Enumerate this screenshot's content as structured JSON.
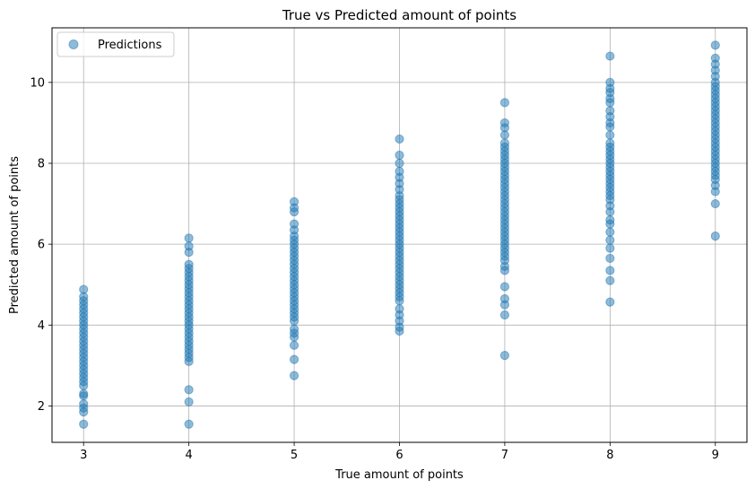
{
  "chart_data": {
    "type": "scatter",
    "title": "True vs Predicted amount of points",
    "xlabel": "True amount of points",
    "ylabel": "Predicted amount of points",
    "xlim": [
      2.7,
      9.3
    ],
    "ylim": [
      1.1,
      11.35
    ],
    "xticks": [
      3,
      4,
      5,
      6,
      7,
      8,
      9
    ],
    "yticks": [
      2,
      4,
      6,
      8,
      10
    ],
    "grid": true,
    "legend": {
      "entries": [
        "Predictions"
      ],
      "position": "top-left"
    },
    "color": "#1f77b4",
    "series": [
      {
        "name": "Predictions",
        "points": [
          {
            "x": 3,
            "y": 1.55
          },
          {
            "x": 3,
            "y": 1.85
          },
          {
            "x": 3,
            "y": 1.95
          },
          {
            "x": 3,
            "y": 2.05
          },
          {
            "x": 3,
            "y": 2.25
          },
          {
            "x": 3,
            "y": 2.3
          },
          {
            "x": 3,
            "y": 2.5
          },
          {
            "x": 3,
            "y": 2.6
          },
          {
            "x": 3,
            "y": 2.7
          },
          {
            "x": 3,
            "y": 2.8
          },
          {
            "x": 3,
            "y": 2.9
          },
          {
            "x": 3,
            "y": 3.0
          },
          {
            "x": 3,
            "y": 3.1
          },
          {
            "x": 3,
            "y": 3.2
          },
          {
            "x": 3,
            "y": 3.3
          },
          {
            "x": 3,
            "y": 3.4
          },
          {
            "x": 3,
            "y": 3.5
          },
          {
            "x": 3,
            "y": 3.6
          },
          {
            "x": 3,
            "y": 3.7
          },
          {
            "x": 3,
            "y": 3.8
          },
          {
            "x": 3,
            "y": 3.9
          },
          {
            "x": 3,
            "y": 4.0
          },
          {
            "x": 3,
            "y": 4.1
          },
          {
            "x": 3,
            "y": 4.2
          },
          {
            "x": 3,
            "y": 4.3
          },
          {
            "x": 3,
            "y": 4.4
          },
          {
            "x": 3,
            "y": 4.5
          },
          {
            "x": 3,
            "y": 4.6
          },
          {
            "x": 3,
            "y": 4.7
          },
          {
            "x": 3,
            "y": 4.88
          },
          {
            "x": 4,
            "y": 1.55
          },
          {
            "x": 4,
            "y": 2.1
          },
          {
            "x": 4,
            "y": 2.4
          },
          {
            "x": 4,
            "y": 3.1
          },
          {
            "x": 4,
            "y": 3.2
          },
          {
            "x": 4,
            "y": 3.3
          },
          {
            "x": 4,
            "y": 3.4
          },
          {
            "x": 4,
            "y": 3.5
          },
          {
            "x": 4,
            "y": 3.6
          },
          {
            "x": 4,
            "y": 3.7
          },
          {
            "x": 4,
            "y": 3.8
          },
          {
            "x": 4,
            "y": 3.9
          },
          {
            "x": 4,
            "y": 4.0
          },
          {
            "x": 4,
            "y": 4.1
          },
          {
            "x": 4,
            "y": 4.2
          },
          {
            "x": 4,
            "y": 4.3
          },
          {
            "x": 4,
            "y": 4.4
          },
          {
            "x": 4,
            "y": 4.5
          },
          {
            "x": 4,
            "y": 4.6
          },
          {
            "x": 4,
            "y": 4.7
          },
          {
            "x": 4,
            "y": 4.8
          },
          {
            "x": 4,
            "y": 4.9
          },
          {
            "x": 4,
            "y": 5.0
          },
          {
            "x": 4,
            "y": 5.1
          },
          {
            "x": 4,
            "y": 5.2
          },
          {
            "x": 4,
            "y": 5.3
          },
          {
            "x": 4,
            "y": 5.4
          },
          {
            "x": 4,
            "y": 5.5
          },
          {
            "x": 4,
            "y": 5.8
          },
          {
            "x": 4,
            "y": 5.95
          },
          {
            "x": 4,
            "y": 6.15
          },
          {
            "x": 5,
            "y": 2.75
          },
          {
            "x": 5,
            "y": 3.15
          },
          {
            "x": 5,
            "y": 3.5
          },
          {
            "x": 5,
            "y": 3.7
          },
          {
            "x": 5,
            "y": 3.8
          },
          {
            "x": 5,
            "y": 3.9
          },
          {
            "x": 5,
            "y": 4.1
          },
          {
            "x": 5,
            "y": 4.2
          },
          {
            "x": 5,
            "y": 4.3
          },
          {
            "x": 5,
            "y": 4.4
          },
          {
            "x": 5,
            "y": 4.5
          },
          {
            "x": 5,
            "y": 4.6
          },
          {
            "x": 5,
            "y": 4.7
          },
          {
            "x": 5,
            "y": 4.8
          },
          {
            "x": 5,
            "y": 4.9
          },
          {
            "x": 5,
            "y": 5.0
          },
          {
            "x": 5,
            "y": 5.1
          },
          {
            "x": 5,
            "y": 5.2
          },
          {
            "x": 5,
            "y": 5.3
          },
          {
            "x": 5,
            "y": 5.4
          },
          {
            "x": 5,
            "y": 5.5
          },
          {
            "x": 5,
            "y": 5.6
          },
          {
            "x": 5,
            "y": 5.7
          },
          {
            "x": 5,
            "y": 5.8
          },
          {
            "x": 5,
            "y": 5.9
          },
          {
            "x": 5,
            "y": 6.0
          },
          {
            "x": 5,
            "y": 6.1
          },
          {
            "x": 5,
            "y": 6.2
          },
          {
            "x": 5,
            "y": 6.35
          },
          {
            "x": 5,
            "y": 6.5
          },
          {
            "x": 5,
            "y": 6.8
          },
          {
            "x": 5,
            "y": 6.9
          },
          {
            "x": 5,
            "y": 7.05
          },
          {
            "x": 6,
            "y": 3.85
          },
          {
            "x": 6,
            "y": 3.95
          },
          {
            "x": 6,
            "y": 4.1
          },
          {
            "x": 6,
            "y": 4.25
          },
          {
            "x": 6,
            "y": 4.4
          },
          {
            "x": 6,
            "y": 4.6
          },
          {
            "x": 6,
            "y": 4.7
          },
          {
            "x": 6,
            "y": 4.8
          },
          {
            "x": 6,
            "y": 4.9
          },
          {
            "x": 6,
            "y": 5.0
          },
          {
            "x": 6,
            "y": 5.1
          },
          {
            "x": 6,
            "y": 5.2
          },
          {
            "x": 6,
            "y": 5.3
          },
          {
            "x": 6,
            "y": 5.4
          },
          {
            "x": 6,
            "y": 5.5
          },
          {
            "x": 6,
            "y": 5.6
          },
          {
            "x": 6,
            "y": 5.7
          },
          {
            "x": 6,
            "y": 5.8
          },
          {
            "x": 6,
            "y": 5.9
          },
          {
            "x": 6,
            "y": 6.0
          },
          {
            "x": 6,
            "y": 6.1
          },
          {
            "x": 6,
            "y": 6.2
          },
          {
            "x": 6,
            "y": 6.3
          },
          {
            "x": 6,
            "y": 6.4
          },
          {
            "x": 6,
            "y": 6.5
          },
          {
            "x": 6,
            "y": 6.6
          },
          {
            "x": 6,
            "y": 6.7
          },
          {
            "x": 6,
            "y": 6.8
          },
          {
            "x": 6,
            "y": 6.9
          },
          {
            "x": 6,
            "y": 7.0
          },
          {
            "x": 6,
            "y": 7.1
          },
          {
            "x": 6,
            "y": 7.2
          },
          {
            "x": 6,
            "y": 7.35
          },
          {
            "x": 6,
            "y": 7.5
          },
          {
            "x": 6,
            "y": 7.65
          },
          {
            "x": 6,
            "y": 7.8
          },
          {
            "x": 6,
            "y": 8.0
          },
          {
            "x": 6,
            "y": 8.2
          },
          {
            "x": 6,
            "y": 8.6
          },
          {
            "x": 7,
            "y": 3.25
          },
          {
            "x": 7,
            "y": 4.25
          },
          {
            "x": 7,
            "y": 4.5
          },
          {
            "x": 7,
            "y": 4.65
          },
          {
            "x": 7,
            "y": 4.95
          },
          {
            "x": 7,
            "y": 5.35
          },
          {
            "x": 7,
            "y": 5.45
          },
          {
            "x": 7,
            "y": 5.6
          },
          {
            "x": 7,
            "y": 5.7
          },
          {
            "x": 7,
            "y": 5.8
          },
          {
            "x": 7,
            "y": 5.9
          },
          {
            "x": 7,
            "y": 6.0
          },
          {
            "x": 7,
            "y": 6.1
          },
          {
            "x": 7,
            "y": 6.2
          },
          {
            "x": 7,
            "y": 6.3
          },
          {
            "x": 7,
            "y": 6.4
          },
          {
            "x": 7,
            "y": 6.5
          },
          {
            "x": 7,
            "y": 6.6
          },
          {
            "x": 7,
            "y": 6.7
          },
          {
            "x": 7,
            "y": 6.8
          },
          {
            "x": 7,
            "y": 6.9
          },
          {
            "x": 7,
            "y": 7.0
          },
          {
            "x": 7,
            "y": 7.1
          },
          {
            "x": 7,
            "y": 7.2
          },
          {
            "x": 7,
            "y": 7.3
          },
          {
            "x": 7,
            "y": 7.4
          },
          {
            "x": 7,
            "y": 7.5
          },
          {
            "x": 7,
            "y": 7.6
          },
          {
            "x": 7,
            "y": 7.7
          },
          {
            "x": 7,
            "y": 7.8
          },
          {
            "x": 7,
            "y": 7.9
          },
          {
            "x": 7,
            "y": 8.0
          },
          {
            "x": 7,
            "y": 8.1
          },
          {
            "x": 7,
            "y": 8.2
          },
          {
            "x": 7,
            "y": 8.3
          },
          {
            "x": 7,
            "y": 8.4
          },
          {
            "x": 7,
            "y": 8.5
          },
          {
            "x": 7,
            "y": 8.7
          },
          {
            "x": 7,
            "y": 8.88
          },
          {
            "x": 7,
            "y": 9.0
          },
          {
            "x": 7,
            "y": 9.5
          },
          {
            "x": 8,
            "y": 4.57
          },
          {
            "x": 8,
            "y": 5.1
          },
          {
            "x": 8,
            "y": 5.35
          },
          {
            "x": 8,
            "y": 5.65
          },
          {
            "x": 8,
            "y": 5.9
          },
          {
            "x": 8,
            "y": 6.1
          },
          {
            "x": 8,
            "y": 6.3
          },
          {
            "x": 8,
            "y": 6.5
          },
          {
            "x": 8,
            "y": 6.6
          },
          {
            "x": 8,
            "y": 6.8
          },
          {
            "x": 8,
            "y": 6.95
          },
          {
            "x": 8,
            "y": 7.1
          },
          {
            "x": 8,
            "y": 7.2
          },
          {
            "x": 8,
            "y": 7.3
          },
          {
            "x": 8,
            "y": 7.4
          },
          {
            "x": 8,
            "y": 7.5
          },
          {
            "x": 8,
            "y": 7.6
          },
          {
            "x": 8,
            "y": 7.7
          },
          {
            "x": 8,
            "y": 7.8
          },
          {
            "x": 8,
            "y": 7.9
          },
          {
            "x": 8,
            "y": 8.0
          },
          {
            "x": 8,
            "y": 8.1
          },
          {
            "x": 8,
            "y": 8.2
          },
          {
            "x": 8,
            "y": 8.3
          },
          {
            "x": 8,
            "y": 8.4
          },
          {
            "x": 8,
            "y": 8.5
          },
          {
            "x": 8,
            "y": 8.7
          },
          {
            "x": 8,
            "y": 8.9
          },
          {
            "x": 8,
            "y": 9.0
          },
          {
            "x": 8,
            "y": 9.15
          },
          {
            "x": 8,
            "y": 9.3
          },
          {
            "x": 8,
            "y": 9.5
          },
          {
            "x": 8,
            "y": 9.6
          },
          {
            "x": 8,
            "y": 9.75
          },
          {
            "x": 8,
            "y": 9.85
          },
          {
            "x": 8,
            "y": 10.0
          },
          {
            "x": 8,
            "y": 10.65
          },
          {
            "x": 9,
            "y": 6.2
          },
          {
            "x": 9,
            "y": 7.0
          },
          {
            "x": 9,
            "y": 7.3
          },
          {
            "x": 9,
            "y": 7.45
          },
          {
            "x": 9,
            "y": 7.6
          },
          {
            "x": 9,
            "y": 7.7
          },
          {
            "x": 9,
            "y": 7.8
          },
          {
            "x": 9,
            "y": 7.9
          },
          {
            "x": 9,
            "y": 8.0
          },
          {
            "x": 9,
            "y": 8.1
          },
          {
            "x": 9,
            "y": 8.2
          },
          {
            "x": 9,
            "y": 8.3
          },
          {
            "x": 9,
            "y": 8.4
          },
          {
            "x": 9,
            "y": 8.5
          },
          {
            "x": 9,
            "y": 8.6
          },
          {
            "x": 9,
            "y": 8.7
          },
          {
            "x": 9,
            "y": 8.8
          },
          {
            "x": 9,
            "y": 8.9
          },
          {
            "x": 9,
            "y": 9.0
          },
          {
            "x": 9,
            "y": 9.1
          },
          {
            "x": 9,
            "y": 9.2
          },
          {
            "x": 9,
            "y": 9.3
          },
          {
            "x": 9,
            "y": 9.4
          },
          {
            "x": 9,
            "y": 9.5
          },
          {
            "x": 9,
            "y": 9.6
          },
          {
            "x": 9,
            "y": 9.7
          },
          {
            "x": 9,
            "y": 9.8
          },
          {
            "x": 9,
            "y": 9.9
          },
          {
            "x": 9,
            "y": 10.0
          },
          {
            "x": 9,
            "y": 10.15
          },
          {
            "x": 9,
            "y": 10.3
          },
          {
            "x": 9,
            "y": 10.45
          },
          {
            "x": 9,
            "y": 10.6
          },
          {
            "x": 9,
            "y": 10.92
          }
        ]
      }
    ]
  }
}
